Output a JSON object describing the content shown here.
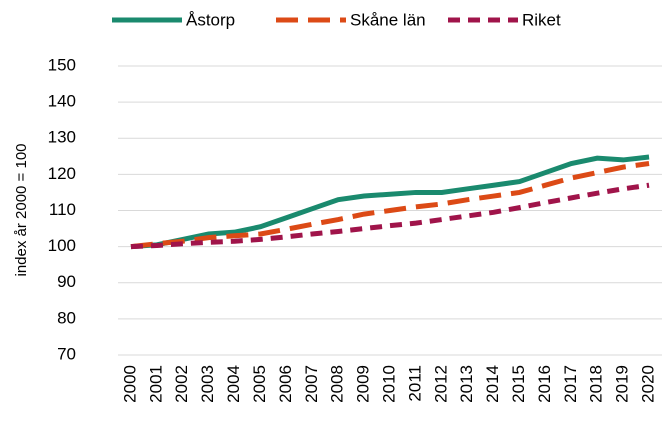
{
  "chart_data": {
    "type": "line",
    "y_label": "index år 2000 = 100",
    "categories": [
      "2000",
      "2001",
      "2002",
      "2003",
      "2004",
      "2005",
      "2006",
      "2007",
      "2008",
      "2009",
      "2010",
      "2011",
      "2012",
      "2013",
      "2014",
      "2015",
      "2016",
      "2017",
      "2018",
      "2019",
      "2020"
    ],
    "series": [
      {
        "name": "Åstorp",
        "color": "#1a8a6e",
        "dash": "solid",
        "values": [
          100,
          100.5,
          102,
          103.5,
          104,
          105.5,
          108,
          110.5,
          113,
          114,
          114.5,
          115,
          115,
          116,
          117,
          118,
          120.5,
          123,
          124.5,
          124,
          124.8
        ]
      },
      {
        "name": "Skåne län",
        "color": "#dc4a16",
        "dash": "long",
        "values": [
          100,
          100.8,
          101.5,
          102.5,
          103,
          103.5,
          104.8,
          106.2,
          107.5,
          109,
          110,
          111,
          111.8,
          113,
          114,
          115,
          117,
          119,
          120.5,
          122,
          123
        ]
      },
      {
        "name": "Riket",
        "color": "#a0144a",
        "dash": "short",
        "values": [
          100,
          100.3,
          100.8,
          101.2,
          101.5,
          102,
          102.7,
          103.5,
          104.2,
          105,
          105.8,
          106.5,
          107.5,
          108.5,
          109.5,
          110.8,
          112.2,
          113.5,
          114.8,
          116,
          117
        ]
      }
    ],
    "ylim": [
      70,
      150
    ],
    "yticks": [
      70,
      80,
      90,
      100,
      110,
      120,
      130,
      140,
      150
    ],
    "grid": true,
    "legend": "top"
  }
}
